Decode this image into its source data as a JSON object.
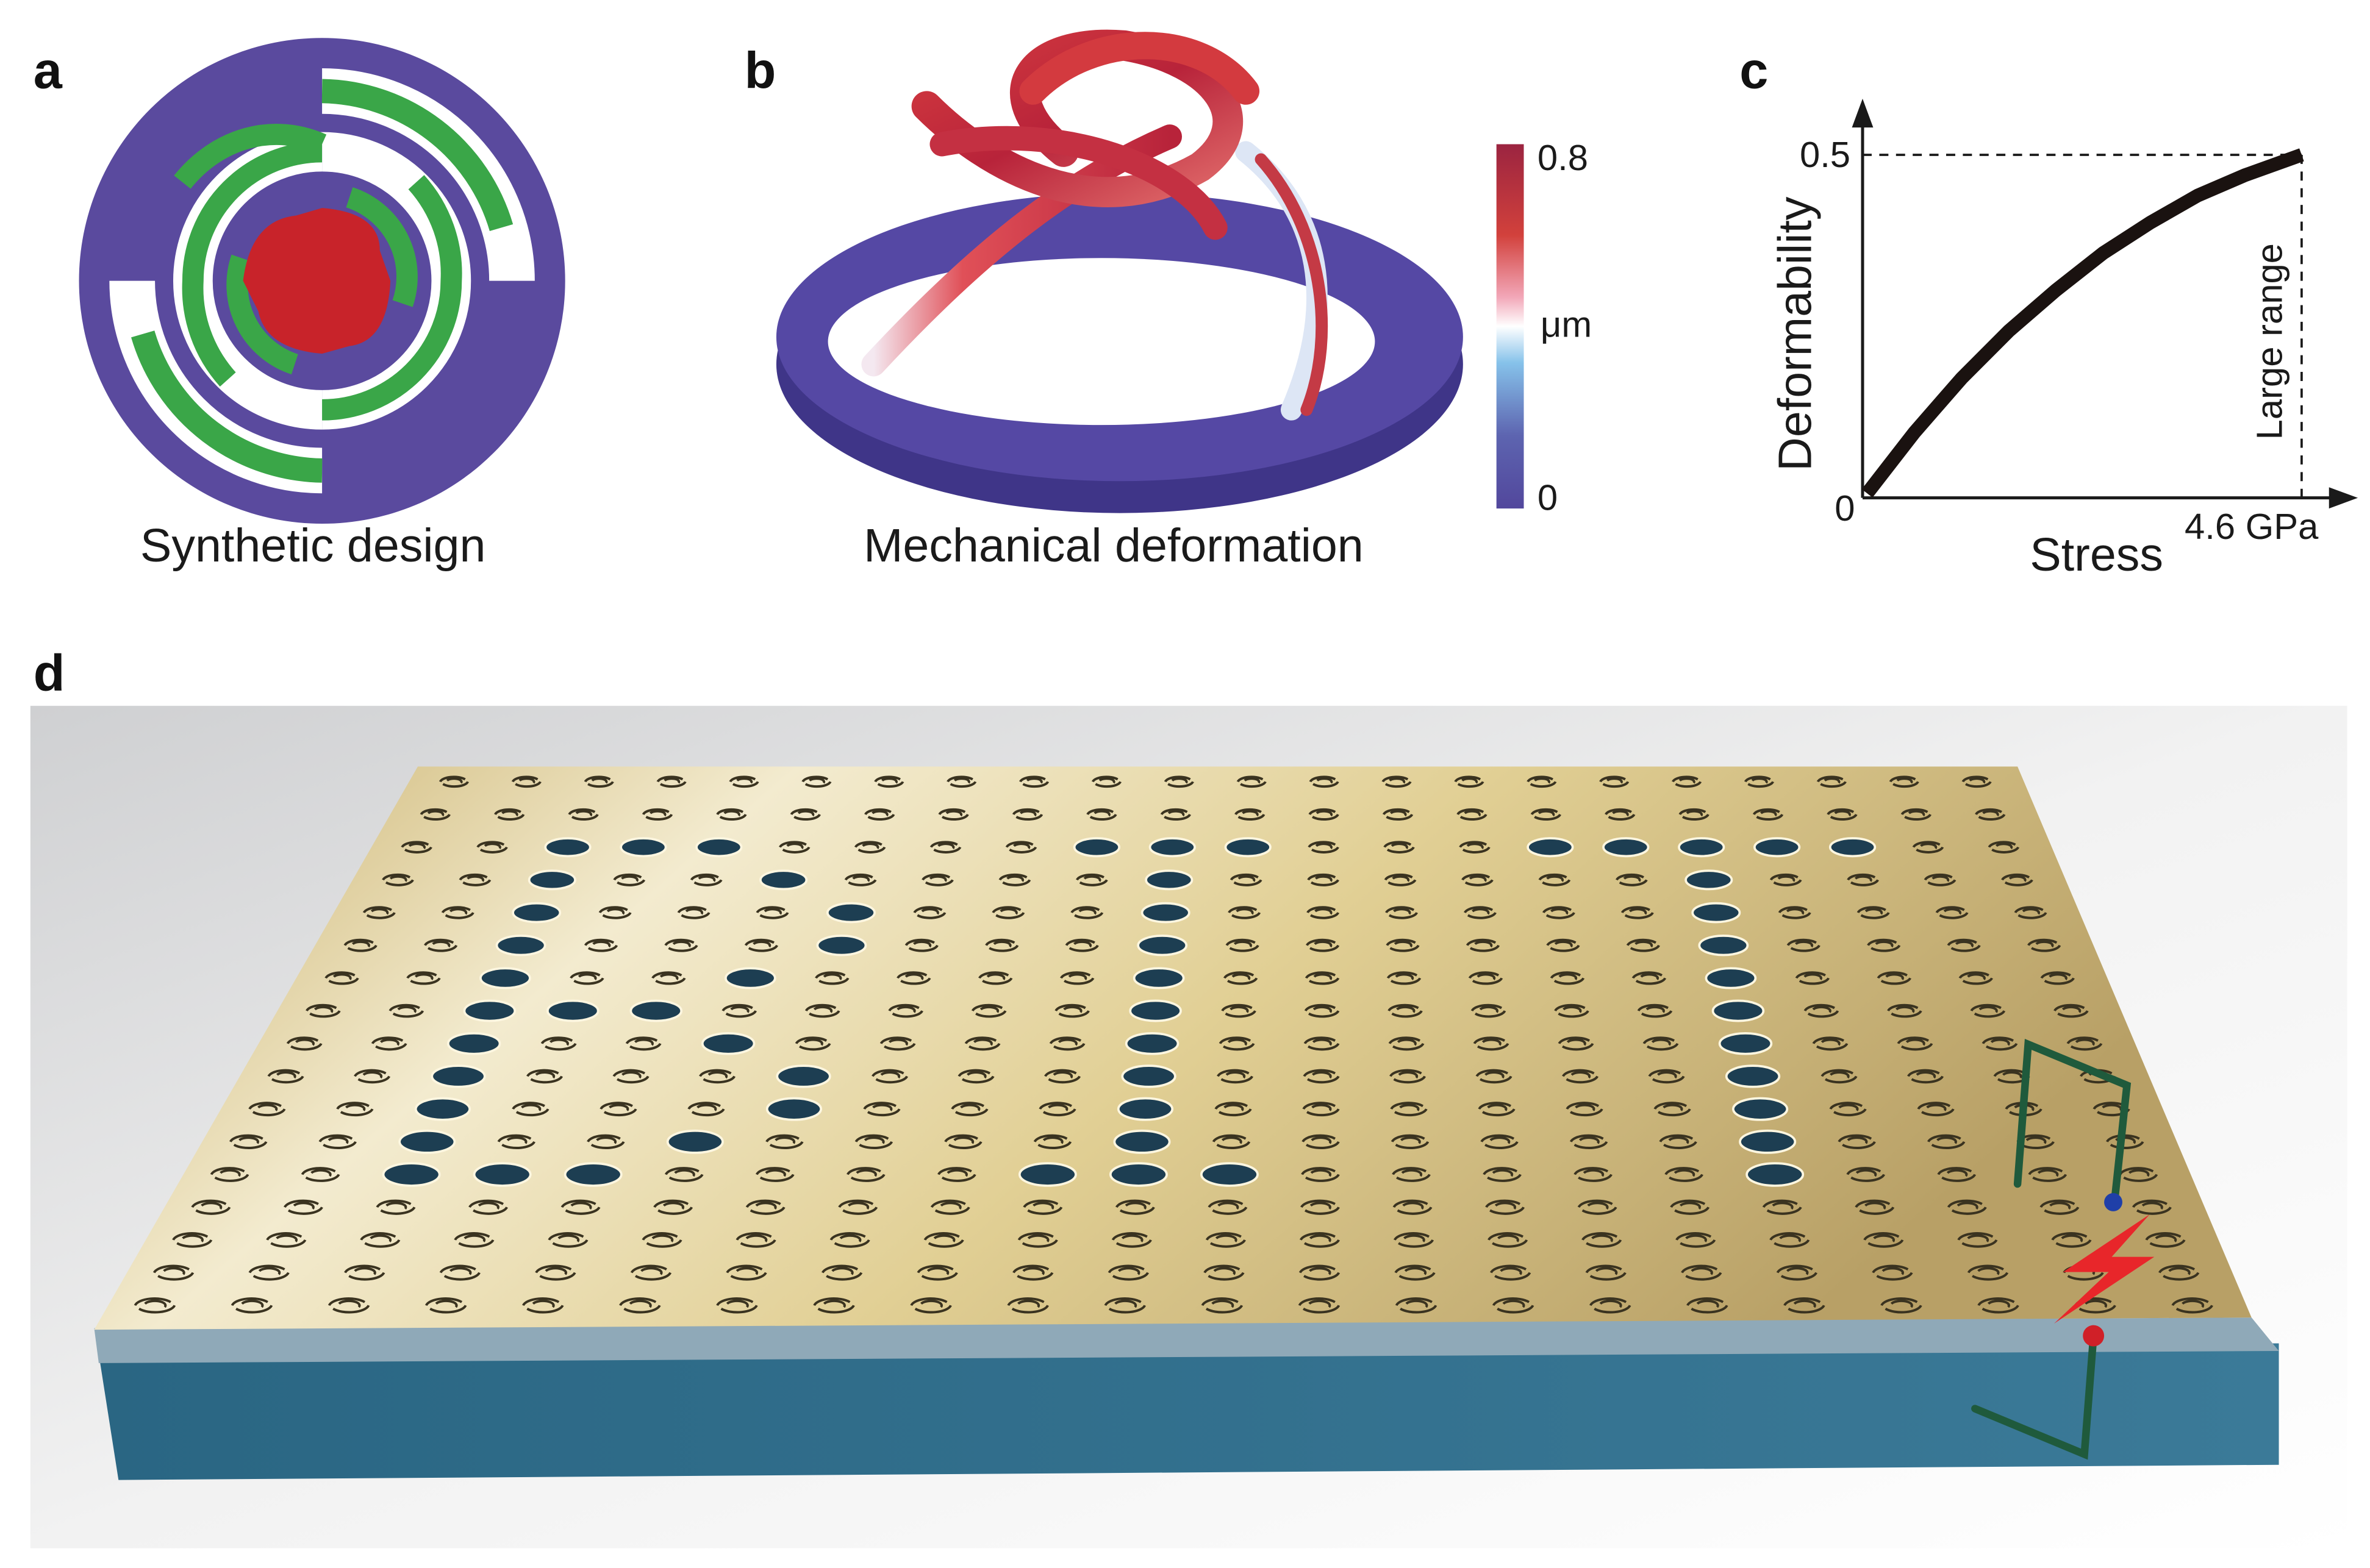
{
  "panels": {
    "a": {
      "label": "a",
      "caption": "Synthetic design"
    },
    "b": {
      "label": "b",
      "caption": "Mechanical deformation",
      "colorbar": {
        "max_label": "0.8",
        "unit_label": "μm",
        "min_label": "0",
        "colors": [
          "#9b2440",
          "#d2413c",
          "#f2a7b8",
          "#ffffff",
          "#86c2ea",
          "#5d64b0",
          "#52479c"
        ]
      }
    },
    "c": {
      "label": "c"
    },
    "d": {
      "label": "d"
    }
  },
  "colors": {
    "ring": "#5a4a9e",
    "spiral": "#3aa648",
    "center": "#c8232a",
    "gold": "#d8c68a",
    "substrate": "#2f6f8e",
    "electrode": "#1f5a3c",
    "spark": "#e8262a"
  },
  "chart_data": {
    "type": "line",
    "xlabel": "Stress",
    "ylabel": "Deformability",
    "x_end_label": "4.6 GPa",
    "y_ticks": [
      "0",
      "0.5"
    ],
    "annotation": "Large range",
    "xlim": [
      0,
      4.6
    ],
    "ylim": [
      0,
      0.5
    ],
    "grid": false,
    "x": [
      0,
      0.5,
      1.0,
      1.5,
      2.0,
      2.5,
      3.0,
      3.5,
      4.0,
      4.6
    ],
    "y": [
      0,
      0.09,
      0.17,
      0.24,
      0.3,
      0.355,
      0.4,
      0.44,
      0.47,
      0.5
    ]
  }
}
